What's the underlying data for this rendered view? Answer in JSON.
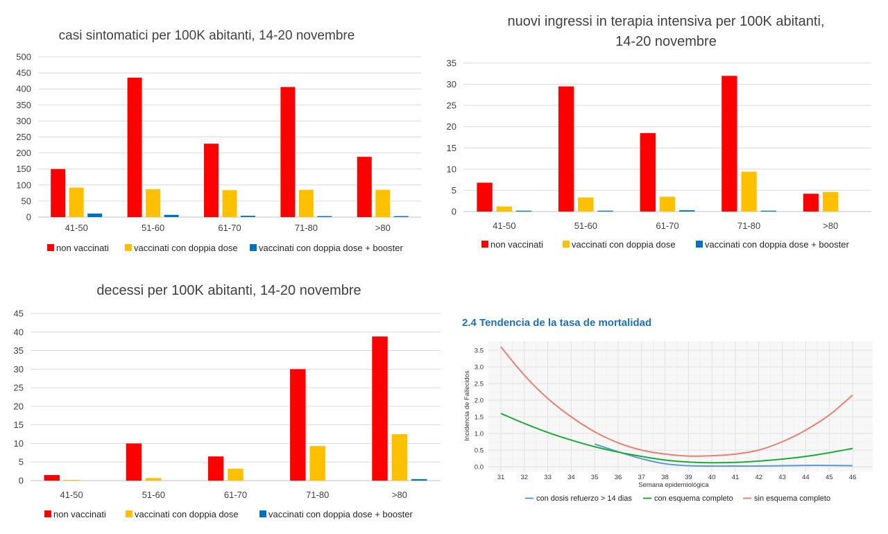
{
  "chart_data": [
    {
      "type": "bar",
      "title": "casi sintomatici per 100K abitanti, 14-20 novembre",
      "categories": [
        "41-50",
        "51-60",
        "61-70",
        "71-80",
        ">80"
      ],
      "ylim": [
        0,
        500
      ],
      "yticks": [
        "0",
        "50",
        "100",
        "150",
        "200",
        "250",
        "300",
        "350",
        "400",
        "450",
        "500"
      ],
      "grid": true,
      "legend_position": "bottom",
      "series": [
        {
          "name": "non vaccinati",
          "color": "#ff0000",
          "values": [
            150,
            435,
            229,
            406,
            188
          ]
        },
        {
          "name": "vaccinati con doppia dose",
          "color": "#ffc000",
          "values": [
            92,
            87,
            84,
            85,
            85
          ]
        },
        {
          "name": "vaccinati con doppia dose + booster",
          "color": "#0070c0",
          "values": [
            11,
            7,
            4,
            3,
            3
          ]
        }
      ]
    },
    {
      "type": "bar",
      "title": "nuovi ingressi in terapia intensiva per 100K abitanti,",
      "title_line2": "14-20 novembre",
      "categories": [
        "41-50",
        "51-60",
        "61-70",
        "71-80",
        ">80"
      ],
      "ylim": [
        0,
        35
      ],
      "yticks": [
        "0",
        "5",
        "10",
        "15",
        "20",
        "25",
        "30",
        "35"
      ],
      "grid": true,
      "legend_position": "bottom",
      "series": [
        {
          "name": "non vaccinati",
          "color": "#ff0000",
          "values": [
            6.8,
            29.5,
            18.5,
            32,
            4.2
          ]
        },
        {
          "name": "vaccinati con doppia dose",
          "color": "#ffc000",
          "values": [
            1.2,
            3.3,
            3.5,
            9.4,
            4.6
          ]
        },
        {
          "name": "vaccinati con doppia dose + booster",
          "color": "#0070c0",
          "values": [
            0.2,
            0.2,
            0.3,
            0.2,
            0
          ]
        }
      ]
    },
    {
      "type": "bar",
      "title": "decessi per 100K abitanti, 14-20 novembre",
      "categories": [
        "41-50",
        "51-60",
        "61-70",
        "71-80",
        ">80"
      ],
      "ylim": [
        0,
        45
      ],
      "yticks": [
        "0",
        "5",
        "10",
        "15",
        "20",
        "25",
        "30",
        "35",
        "40",
        "45"
      ],
      "grid": true,
      "legend_position": "bottom",
      "series": [
        {
          "name": "non vaccinati",
          "color": "#ff0000",
          "values": [
            1.5,
            10,
            6.5,
            30,
            38.8
          ]
        },
        {
          "name": "vaccinati con doppia dose",
          "color": "#ffc000",
          "values": [
            0.2,
            0.7,
            3.2,
            9.3,
            12.5
          ]
        },
        {
          "name": "vaccinati con doppia dose + booster",
          "color": "#0070c0",
          "values": [
            0,
            0,
            0,
            0,
            0.4
          ]
        }
      ]
    },
    {
      "type": "line",
      "title": "2.4 Tendencia de la tasa de mortalidad",
      "xlabel": "Semana epidemiológica",
      "ylabel": "Incidencia de Fallecidos",
      "xlim": [
        31,
        46
      ],
      "ylim": [
        0,
        3.6
      ],
      "xticks": [
        "31",
        "32",
        "33",
        "34",
        "35",
        "36",
        "37",
        "38",
        "39",
        "40",
        "41",
        "42",
        "43",
        "44",
        "45",
        "46"
      ],
      "yticks": [
        "0.0",
        "0.5",
        "1.0",
        "1.5",
        "2.0",
        "2.5",
        "3.0",
        "3.5"
      ],
      "grid": true,
      "legend_position": "bottom",
      "series": [
        {
          "name": "con dosis refuerzo > 14 dias",
          "color": "#5b9bd5",
          "x": [
            35,
            36,
            37,
            38,
            39,
            40,
            41,
            42,
            43,
            44,
            45,
            46
          ],
          "y": [
            0.68,
            0.45,
            0.24,
            0.09,
            0.03,
            0.02,
            0.02,
            0.02,
            0.03,
            0.04,
            0.04,
            0.03
          ]
        },
        {
          "name": "con esquema completo",
          "color": "#1aaa36",
          "x": [
            31,
            32,
            33,
            34,
            35,
            36,
            37,
            38,
            39,
            40,
            41,
            42,
            43,
            44,
            45,
            46
          ],
          "y": [
            1.6,
            1.3,
            1.03,
            0.8,
            0.6,
            0.44,
            0.31,
            0.2,
            0.14,
            0.12,
            0.13,
            0.17,
            0.23,
            0.31,
            0.42,
            0.55
          ]
        },
        {
          "name": "sin esquema completo",
          "color": "#e8806f",
          "x": [
            31,
            32,
            33,
            34,
            35,
            36,
            37,
            38,
            39,
            40,
            41,
            42,
            43,
            44,
            45,
            46
          ],
          "y": [
            3.6,
            2.75,
            2.05,
            1.5,
            1.05,
            0.72,
            0.5,
            0.38,
            0.32,
            0.33,
            0.38,
            0.5,
            0.75,
            1.1,
            1.55,
            2.15
          ]
        }
      ]
    }
  ]
}
